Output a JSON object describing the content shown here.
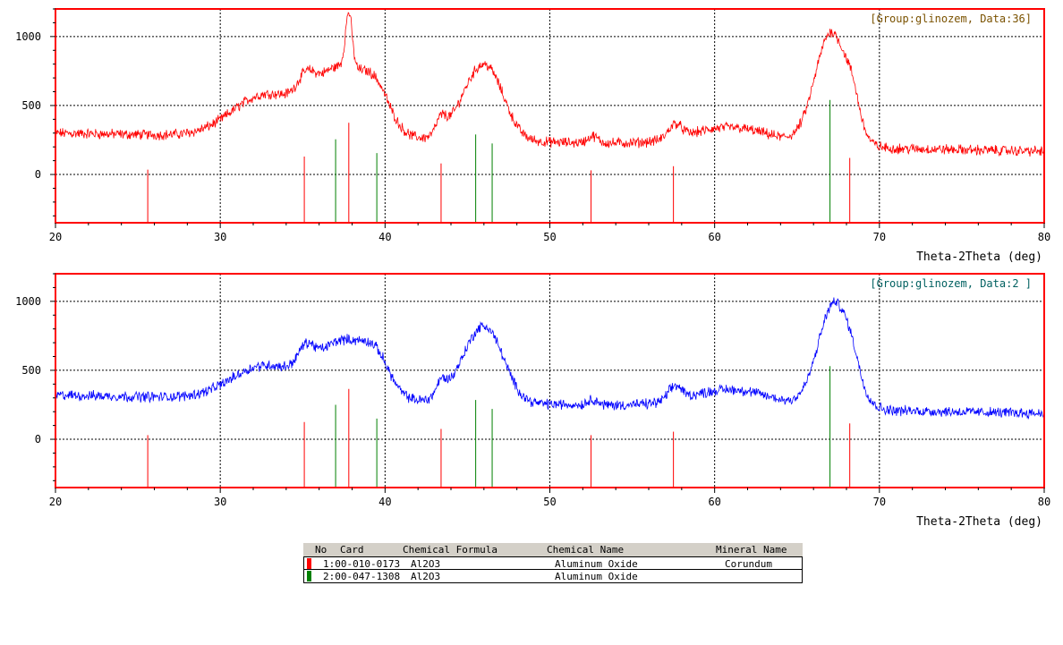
{
  "chart_data": [
    {
      "type": "line",
      "title": "",
      "group_label": "[Group:glinozem, Data:36]",
      "xlabel": "Theta-2Theta (deg)",
      "ylabel": "",
      "xlim": [
        20,
        80
      ],
      "ylim": [
        -350,
        1200
      ],
      "x_ticks": [
        20,
        30,
        40,
        50,
        60,
        70,
        80
      ],
      "y_ticks": [
        0,
        500,
        1000
      ],
      "grid": true,
      "frame_color": "#ff0000",
      "series_color": "#ff0000",
      "label_color": "#7a5200",
      "background": 300,
      "peaks": [
        {
          "x": 32.7,
          "y": 300,
          "w": 2.0
        },
        {
          "x": 35.2,
          "y": 130,
          "w": 0.5
        },
        {
          "x": 37.4,
          "y": 500,
          "w": 1.7
        },
        {
          "x": 37.8,
          "y": 400,
          "w": 0.2
        },
        {
          "x": 39.5,
          "y": 200,
          "w": 0.8
        },
        {
          "x": 43.4,
          "y": 110,
          "w": 0.3
        },
        {
          "x": 45.7,
          "y": 450,
          "w": 1.2
        },
        {
          "x": 46.6,
          "y": 150,
          "w": 0.9
        },
        {
          "x": 52.6,
          "y": 50,
          "w": 0.3
        },
        {
          "x": 57.6,
          "y": 100,
          "w": 0.4
        },
        {
          "x": 61.0,
          "y": 130,
          "w": 2.5
        },
        {
          "x": 67.1,
          "y": 830,
          "w": 1.0
        },
        {
          "x": 68.4,
          "y": 150,
          "w": 0.4
        }
      ],
      "reference_cards": [
        {
          "card": 1,
          "color": "#ff0000",
          "lines": [
            [
              25.6,
              35
            ],
            [
              35.1,
              130
            ],
            [
              37.8,
              375
            ],
            [
              43.4,
              80
            ],
            [
              52.5,
              30
            ],
            [
              57.5,
              60
            ],
            [
              68.2,
              120
            ]
          ]
        },
        {
          "card": 2,
          "color": "#008000",
          "lines": [
            [
              37.0,
              255
            ],
            [
              39.5,
              155
            ],
            [
              45.5,
              290
            ],
            [
              46.5,
              225
            ],
            [
              67.0,
              540
            ]
          ]
        }
      ]
    },
    {
      "type": "line",
      "title": "",
      "group_label": "[Group:glinozem, Data:2 ]",
      "xlabel": "Theta-2Theta (deg)",
      "ylabel": "",
      "xlim": [
        20,
        80
      ],
      "ylim": [
        -350,
        1200
      ],
      "x_ticks": [
        20,
        30,
        40,
        50,
        60,
        70,
        80
      ],
      "y_ticks": [
        0,
        500,
        1000
      ],
      "grid": true,
      "frame_color": "#ff0000",
      "series_color": "#0000ff",
      "label_color": "#006060",
      "background": 320,
      "peaks": [
        {
          "x": 32.7,
          "y": 240,
          "w": 2.0
        },
        {
          "x": 35.2,
          "y": 150,
          "w": 0.5
        },
        {
          "x": 37.5,
          "y": 420,
          "w": 1.6
        },
        {
          "x": 39.5,
          "y": 190,
          "w": 0.8
        },
        {
          "x": 43.4,
          "y": 100,
          "w": 0.3
        },
        {
          "x": 45.7,
          "y": 450,
          "w": 1.2
        },
        {
          "x": 46.6,
          "y": 150,
          "w": 0.9
        },
        {
          "x": 52.6,
          "y": 40,
          "w": 0.3
        },
        {
          "x": 57.6,
          "y": 100,
          "w": 0.4
        },
        {
          "x": 61.0,
          "y": 130,
          "w": 2.5
        },
        {
          "x": 67.3,
          "y": 770,
          "w": 1.0
        },
        {
          "x": 68.4,
          "y": 80,
          "w": 0.4
        }
      ],
      "reference_cards": [
        {
          "card": 1,
          "color": "#ff0000",
          "lines": [
            [
              25.6,
              30
            ],
            [
              35.1,
              125
            ],
            [
              37.8,
              365
            ],
            [
              43.4,
              75
            ],
            [
              52.5,
              30
            ],
            [
              57.5,
              55
            ],
            [
              68.2,
              115
            ]
          ]
        },
        {
          "card": 2,
          "color": "#008000",
          "lines": [
            [
              37.0,
              250
            ],
            [
              39.5,
              150
            ],
            [
              45.5,
              285
            ],
            [
              46.5,
              220
            ],
            [
              67.0,
              530
            ]
          ]
        }
      ]
    }
  ],
  "card_table": {
    "headers": {
      "no": "No",
      "card": "Card",
      "formula": "Chemical Formula",
      "name": "Chemical Name",
      "mineral": "Mineral Name"
    },
    "rows": [
      {
        "no_card": "1:00-010-0173",
        "formula": "Al2O3",
        "name": "Aluminum Oxide",
        "mineral": "Corundum",
        "color": "#ff0000"
      },
      {
        "no_card": "2:00-047-1308",
        "formula": "Al2O3",
        "name": "Aluminum Oxide",
        "mineral": "",
        "color": "#008000"
      }
    ]
  }
}
